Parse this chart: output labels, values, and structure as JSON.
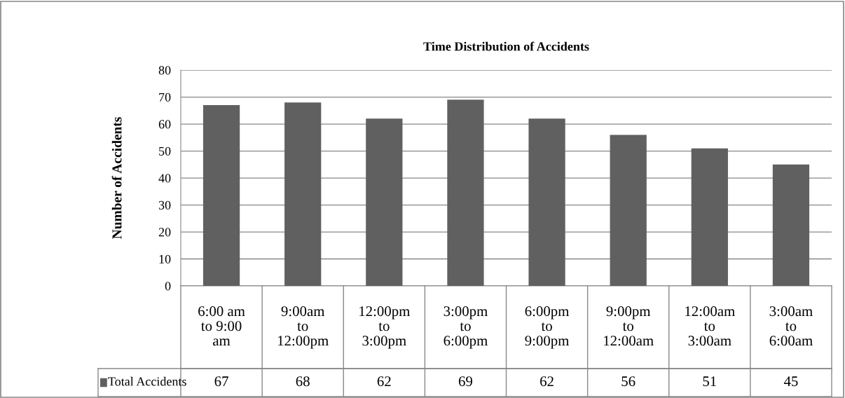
{
  "chart_data": {
    "type": "bar",
    "title": "Time Distribution of Accidents",
    "ylabel": "Number of Accidents",
    "categories": [
      "6:00 am\nto 9:00\nam",
      "9:00am\nto\n12:00pm",
      "12:00pm\nto\n3:00pm",
      "3:00pm\nto\n6:00pm",
      "6:00pm\nto\n9:00pm",
      "9:00pm\nto\n12:00am",
      "12:00am\nto\n3:00am",
      "3:00am\nto\n6:00am"
    ],
    "series": [
      {
        "name": "Total Accidents",
        "color": "#606060",
        "values": [
          67,
          68,
          62,
          69,
          62,
          56,
          51,
          45
        ]
      }
    ],
    "ylim": [
      0,
      80
    ],
    "yticks": [
      0,
      10,
      20,
      30,
      40,
      50,
      60,
      70,
      80
    ],
    "grid": "y",
    "data_labels": true,
    "legend": "bottom"
  }
}
